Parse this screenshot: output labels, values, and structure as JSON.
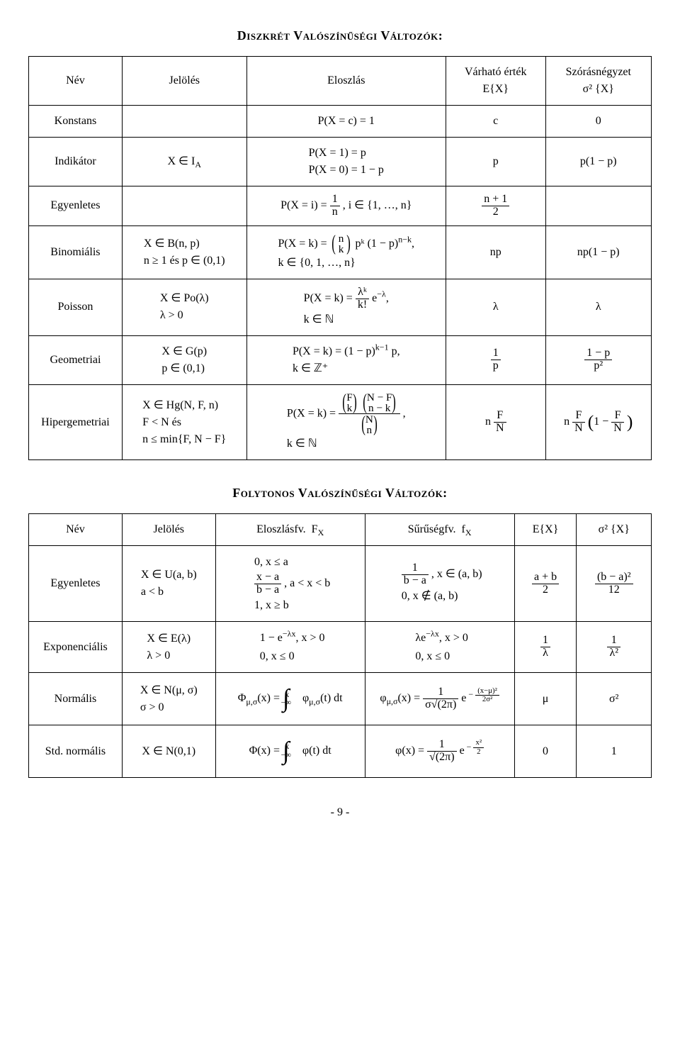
{
  "page_number": "- 9 -",
  "discrete": {
    "title": "Diszkrét Valószínűségi Változók:",
    "headers": {
      "name": "Név",
      "notation": "Jelölés",
      "dist": "Eloszlás",
      "ex_lbl": "Várható érték",
      "ex_sym": "E{X}",
      "var_lbl": "Szórásnégyzet",
      "var_sym": "σ² {X}"
    },
    "rows": {
      "const": {
        "name": "Konstans",
        "notation": "",
        "dist": "P(X = c) = 1",
        "ex": "c",
        "var": "0"
      },
      "ind": {
        "name": "Indikátor",
        "notation": "X ∈ I_A",
        "dist1": "P(X = 1) = p",
        "dist2": "P(X = 0) = 1 − p",
        "ex": "p",
        "var": "p(1 − p)"
      },
      "unif": {
        "name": "Egyenletes",
        "notation": "",
        "dist_pre": "P(X = i) = ",
        "dist_frac_num": "1",
        "dist_frac_den": "n",
        "dist_post": ",  i ∈ {1, …, n}",
        "ex_num": "n + 1",
        "ex_den": "2",
        "var": ""
      },
      "binom": {
        "name": "Binomiális",
        "not1": "X ∈ B(n, p)",
        "not2": "n ≥ 1 és p ∈ (0,1)",
        "dist_pre": "P(X = k) = ",
        "binom_top": "n",
        "binom_bot": "k",
        "dist_mid": " pᵏ (1 − p)",
        "dist_exp": "n−k",
        "dist_post": ",",
        "dist_line2": "k ∈ {0, 1, …, n}",
        "ex": "np",
        "var": "np(1 − p)"
      },
      "poisson": {
        "name": "Poisson",
        "not1": "X ∈ Po(λ)",
        "not2": "λ > 0",
        "dist_pre": "P(X = k) = ",
        "frac_num": "λᵏ",
        "frac_den": "k!",
        "dist_mid": " e",
        "dist_exp": "−λ",
        "dist_post": ",",
        "dist_line2": "k ∈ ℕ",
        "ex": "λ",
        "var": "λ"
      },
      "geom": {
        "name": "Geometriai",
        "not1": "X ∈ G(p)",
        "not2": "p ∈ (0,1)",
        "dist1": "P(X = k) = (1 − p)",
        "dist_exp": "k−1",
        "dist1b": " p,",
        "dist2": "k ∈ ℤ⁺",
        "ex_num": "1",
        "ex_den": "p",
        "var_num": "1 − p",
        "var_den": "p²"
      },
      "hyper": {
        "name": "Hipergemetriai",
        "not1": "X ∈ Hg(N, F, n)",
        "not2": "F < N  és",
        "not3": "n ≤ min{F, N − F}",
        "dist_pre": "P(X = k) = ",
        "b1_top": "F",
        "b1_bot": "k",
        "b2_top": "N − F",
        "b2_bot": "n − k",
        "b3_top": "N",
        "b3_bot": "n",
        "dist_post": ",",
        "dist_line2": "k ∈ ℕ",
        "ex_pre": "n ",
        "ex_num": "F",
        "ex_den": "N",
        "var_pre": "n ",
        "var_num1": "F",
        "var_den1": "N",
        "var_mid": " (1 − ",
        "var_num2": "F",
        "var_den2": "N",
        "var_post": ")"
      }
    }
  },
  "continuous": {
    "title": "Folytonos Valószínűségi Változók:",
    "headers": {
      "name": "Név",
      "notation": "Jelölés",
      "cdf": "Eloszlásfv.  F_X",
      "pdf": "Sűrűségfv.  f_X",
      "ex": "E{X}",
      "var": "σ² {X}"
    },
    "rows": {
      "unif": {
        "name": "Egyenletes",
        "not1": "X ∈ U(a, b)",
        "not2": "a < b",
        "cdf_l1": "0,  x ≤ a",
        "cdf_num": "x − a",
        "cdf_den": "b − a",
        "cdf_l2b": ",  a < x < b",
        "cdf_l3": "1,  x ≥ b",
        "pdf_num": "1",
        "pdf_den": "b − a",
        "pdf_l1b": ",  x ∈ (a, b)",
        "pdf_l2": "0,  x ∉ (a, b)",
        "ex_num": "a + b",
        "ex_den": "2",
        "var_num": "(b − a)²",
        "var_den": "12"
      },
      "exp": {
        "name": "Exponenciális",
        "not1": "X ∈ E(λ)",
        "not2": "λ > 0",
        "cdf_l1a": "1 − e",
        "cdf_exp1": "−λx",
        "cdf_l1b": ",  x > 0",
        "cdf_l2": "0,  x ≤ 0",
        "pdf_l1a": "λe",
        "pdf_exp1": "−λx",
        "pdf_l1b": ",  x > 0",
        "pdf_l2": "0,  x ≤ 0",
        "ex_num": "1",
        "ex_den": "λ",
        "var_num": "1",
        "var_den": "λ²"
      },
      "norm": {
        "name": "Normális",
        "not1": "X ∈ N(μ, σ)",
        "not2": "σ > 0",
        "cdf_pre": "Φ",
        "cdf_sub": "μ,σ",
        "cdf_mid": "(x) = ",
        "int_u": "x",
        "int_l": "−∞",
        "cdf_ins": " φ",
        "cdf_ins_sub": "μ,σ",
        "cdf_ins2": "(t) dt",
        "pdf_pre": "φ",
        "pdf_sub": "μ,σ",
        "pdf_mid": "(x) = ",
        "pdf_num": "1",
        "pdf_den": "σ√(2π)",
        "pdf_exp_pre": " e",
        "pdf_exp_num": "(x−μ)²",
        "pdf_exp_den": "2σ²",
        "pdf_exp_sign": "−",
        "ex": "μ",
        "var": "σ²"
      },
      "stdnorm": {
        "name": "Std. normális",
        "not": "X ∈ N(0,1)",
        "cdf_pre": "Φ(x) = ",
        "int_u": "x",
        "int_l": "−∞",
        "cdf_ins": " φ(t) dt",
        "pdf_pre": "φ(x) = ",
        "pdf_num": "1",
        "pdf_den": "√(2π)",
        "pdf_exp_pre": " e",
        "pdf_exp_num": "x²",
        "pdf_exp_den": "2",
        "pdf_exp_sign": "−",
        "ex": "0",
        "var": "1"
      }
    }
  }
}
